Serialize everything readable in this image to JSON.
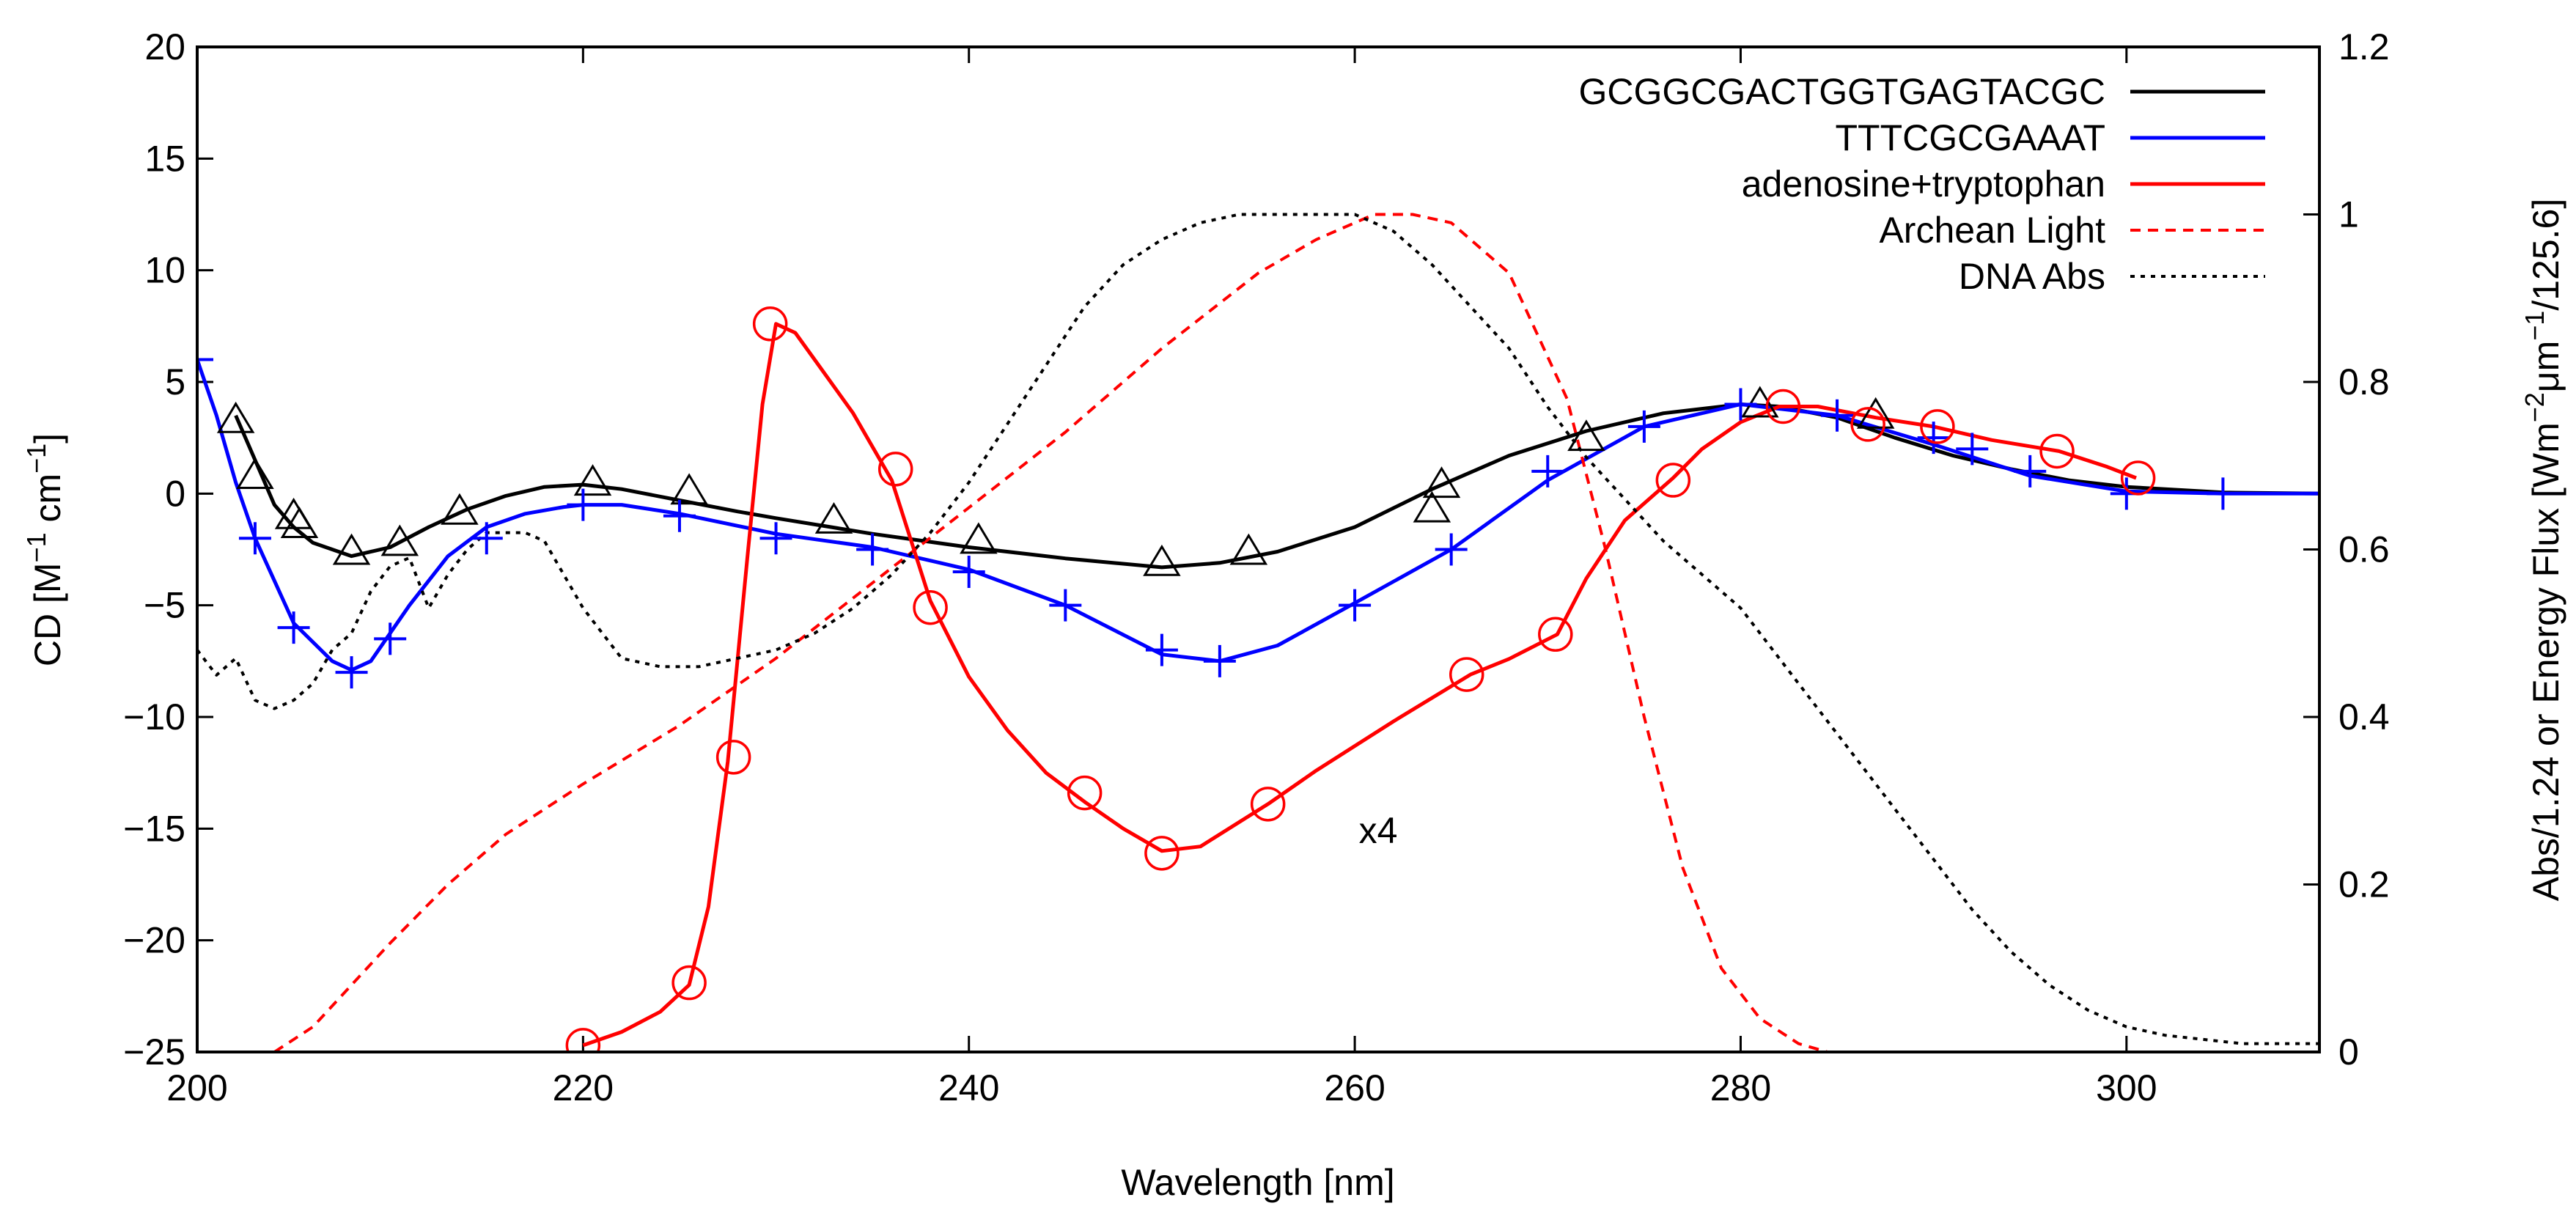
{
  "chart_data": {
    "type": "line",
    "title": "",
    "xlabel": "Wavelength [nm]",
    "ylabel": "CD [M⁻¹ cm⁻¹]",
    "ylabel_parts": [
      "CD [M",
      "−1",
      " cm",
      "−1",
      "]"
    ],
    "y2label": "Abs/1.24 or Energy Flux [Wm⁻²μm⁻¹/125.6]",
    "y2label_parts": [
      "Abs/1.24 or Energy Flux [Wm",
      "−2",
      "μm",
      "−1",
      "/125.6]"
    ],
    "xlim": [
      200,
      310
    ],
    "ylim": [
      -25,
      20
    ],
    "y2lim": [
      0,
      1.2
    ],
    "xticks": [
      200,
      220,
      240,
      260,
      280,
      300
    ],
    "xtick_labels": [
      "200",
      "220",
      "240",
      "260",
      "280",
      "300"
    ],
    "yticks": [
      20,
      15,
      10,
      5,
      0,
      -5,
      -10,
      -15,
      -20,
      -25
    ],
    "ytick_labels": [
      "20",
      "15",
      "10",
      "5",
      "0",
      "−5",
      "−10",
      "−15",
      "−20",
      "−25"
    ],
    "y2ticks": [
      1.2,
      1,
      0.8,
      0.6,
      0.4,
      0.2,
      0
    ],
    "y2tick_labels": [
      "1.2",
      "1",
      "0.8",
      "0.6",
      "0.4",
      "0.2",
      "0"
    ],
    "legend_position": "top-right",
    "annotations": [
      {
        "text": "x4",
        "x": 260,
        "y": -15
      }
    ],
    "series": [
      {
        "name": "GCGGCGACTGGTGAGTACGC",
        "axis": "left",
        "color": "#000000",
        "dash": "solid",
        "marker": "triangle",
        "x": [
          202,
          203,
          204,
          205,
          206,
          208,
          210,
          212,
          214,
          216,
          218,
          220,
          222,
          225,
          228,
          230,
          235,
          240,
          245,
          250,
          253,
          256,
          260,
          264,
          268,
          272,
          276,
          280,
          282,
          285,
          288,
          291,
          294,
          297,
          300,
          305,
          310
        ],
        "y": [
          3.5,
          1.5,
          -0.5,
          -1.5,
          -2.2,
          -2.8,
          -2.4,
          -1.5,
          -0.7,
          -0.1,
          0.3,
          0.4,
          0.2,
          -0.3,
          -0.8,
          -1.1,
          -1.8,
          -2.4,
          -2.9,
          -3.3,
          -3.1,
          -2.6,
          -1.5,
          0.2,
          1.7,
          2.8,
          3.6,
          4.0,
          3.9,
          3.4,
          2.5,
          1.7,
          1.1,
          0.6,
          0.3,
          0.05,
          0.0
        ],
        "marker_x": [
          202,
          203,
          205,
          205.3,
          208,
          210.5,
          213.6,
          220.5,
          225.5,
          233,
          240.5,
          250,
          254.5,
          264,
          264.5,
          272,
          281,
          287
        ],
        "marker_y": [
          3.3,
          0.8,
          -1.0,
          -1.4,
          -2.6,
          -2.2,
          -0.8,
          0.5,
          0.1,
          -1.2,
          -2.1,
          -3.1,
          -2.6,
          -0.7,
          0.4,
          2.5,
          4.0,
          3.5
        ]
      },
      {
        "name": "TTTCGCGAAAT",
        "axis": "left",
        "color": "#0000ff",
        "dash": "solid",
        "marker": "plus",
        "x": [
          200,
          201,
          202,
          203,
          205,
          207,
          208,
          209,
          211,
          213,
          215,
          217,
          219,
          220,
          222,
          225,
          230,
          235,
          240,
          245,
          250,
          253,
          256,
          260,
          265,
          270,
          275,
          280,
          285,
          290,
          295,
          300,
          305,
          310
        ],
        "y": [
          6,
          3.5,
          0.5,
          -2,
          -5.8,
          -7.5,
          -7.9,
          -7.5,
          -5,
          -2.8,
          -1.5,
          -0.9,
          -0.6,
          -0.5,
          -0.5,
          -0.9,
          -1.8,
          -2.4,
          -3.4,
          -5.0,
          -7.2,
          -7.5,
          -6.8,
          -4.9,
          -2.5,
          0.6,
          3.0,
          4.0,
          3.5,
          2.2,
          0.8,
          0.1,
          0.0,
          0.0
        ],
        "marker_x": [
          200,
          203,
          205,
          208,
          210,
          215,
          220,
          225,
          230,
          235,
          240,
          245,
          250,
          253,
          260,
          265,
          270,
          275,
          280,
          285,
          290,
          292,
          295,
          300,
          305,
          310
        ],
        "marker_y": [
          6,
          -2,
          -6,
          -8,
          -6.5,
          -2,
          -0.5,
          -1,
          -2,
          -2.5,
          -3.5,
          -5,
          -7,
          -7.5,
          -5,
          -2.5,
          1,
          3,
          4,
          3.5,
          2.5,
          2,
          1,
          0,
          0,
          0
        ]
      },
      {
        "name": "adenosine+tryptophan",
        "axis": "left",
        "color": "#ff0000",
        "dash": "solid",
        "marker": "circle",
        "x": [
          220,
          222,
          224,
          225.5,
          226.5,
          227.5,
          228.5,
          229.3,
          230,
          231,
          232,
          234,
          236,
          238,
          240,
          242,
          244,
          246,
          248,
          250,
          252,
          255.5,
          258,
          262,
          266,
          268,
          270.5,
          272,
          274,
          276.5,
          278,
          280,
          282,
          284,
          287,
          290,
          293,
          296.5,
          299,
          300.5
        ],
        "y": [
          -24.7,
          -24.1,
          -23.2,
          -22,
          -18.5,
          -12,
          -3,
          4,
          7.6,
          7.2,
          6.0,
          3.6,
          0.6,
          -4.8,
          -8.2,
          -10.6,
          -12.5,
          -13.8,
          -15.0,
          -16.0,
          -15.8,
          -13.9,
          -12.4,
          -10.2,
          -8.1,
          -7.4,
          -6.3,
          -3.8,
          -1.2,
          0.7,
          2.0,
          3.2,
          3.9,
          3.9,
          3.4,
          3.0,
          2.4,
          1.9,
          1.2,
          0.7
        ],
        "marker_x": [
          220,
          225.5,
          227.8,
          229.7,
          236.2,
          238,
          246,
          250,
          255.5,
          265.8,
          270.4,
          276.5,
          282.2,
          286.6,
          290.2,
          296.4,
          300.6
        ],
        "marker_y": [
          -24.7,
          -21.9,
          -11.8,
          7.6,
          1.1,
          -5.1,
          -13.4,
          -16.1,
          -13.9,
          -8.1,
          -6.3,
          0.6,
          3.9,
          3.1,
          3.0,
          1.9,
          0.7
        ]
      },
      {
        "name": "Archean Light",
        "axis": "right",
        "color": "#ff0000",
        "dash": "dashed",
        "marker": "none",
        "x": [
          204,
          206,
          208,
          210,
          213,
          216,
          220,
          225,
          230,
          235,
          240,
          245,
          250,
          255,
          258,
          261,
          263,
          265,
          268,
          271,
          273,
          275,
          277,
          279,
          281,
          283,
          284.5
        ],
        "y": [
          0.0,
          0.03,
          0.08,
          0.13,
          0.2,
          0.26,
          0.32,
          0.39,
          0.47,
          0.56,
          0.65,
          0.74,
          0.84,
          0.93,
          0.97,
          1.0,
          1.0,
          0.99,
          0.93,
          0.78,
          0.6,
          0.4,
          0.22,
          0.1,
          0.04,
          0.01,
          0.0
        ]
      },
      {
        "name": "DNA Abs",
        "axis": "right",
        "color": "#000000",
        "dash": "dotted",
        "marker": "none",
        "x": [
          200,
          201,
          202,
          203,
          204,
          205,
          206,
          207,
          208,
          209,
          210,
          211,
          212,
          213,
          214,
          215,
          216,
          217,
          218,
          219,
          220,
          221,
          222,
          224,
          226,
          228,
          230,
          232,
          234,
          236,
          238,
          240,
          242,
          244,
          246,
          248,
          250,
          252,
          254,
          256,
          258,
          260,
          262,
          264,
          266,
          268,
          270,
          272,
          274,
          276,
          278,
          280,
          282,
          284,
          286,
          288,
          290,
          292,
          294,
          296,
          298,
          300,
          302,
          304,
          306,
          308,
          310
        ],
        "y": [
          0.48,
          0.45,
          0.47,
          0.42,
          0.41,
          0.42,
          0.44,
          0.48,
          0.5,
          0.55,
          0.58,
          0.59,
          0.53,
          0.57,
          0.6,
          0.62,
          0.62,
          0.62,
          0.61,
          0.57,
          0.53,
          0.5,
          0.47,
          0.46,
          0.46,
          0.47,
          0.48,
          0.5,
          0.53,
          0.57,
          0.62,
          0.68,
          0.75,
          0.82,
          0.89,
          0.94,
          0.97,
          0.99,
          1.0,
          1.0,
          1.0,
          1.0,
          0.98,
          0.94,
          0.89,
          0.84,
          0.77,
          0.71,
          0.66,
          0.61,
          0.57,
          0.53,
          0.47,
          0.41,
          0.35,
          0.29,
          0.23,
          0.17,
          0.12,
          0.08,
          0.05,
          0.03,
          0.02,
          0.015,
          0.01,
          0.01,
          0.01
        ]
      }
    ]
  }
}
